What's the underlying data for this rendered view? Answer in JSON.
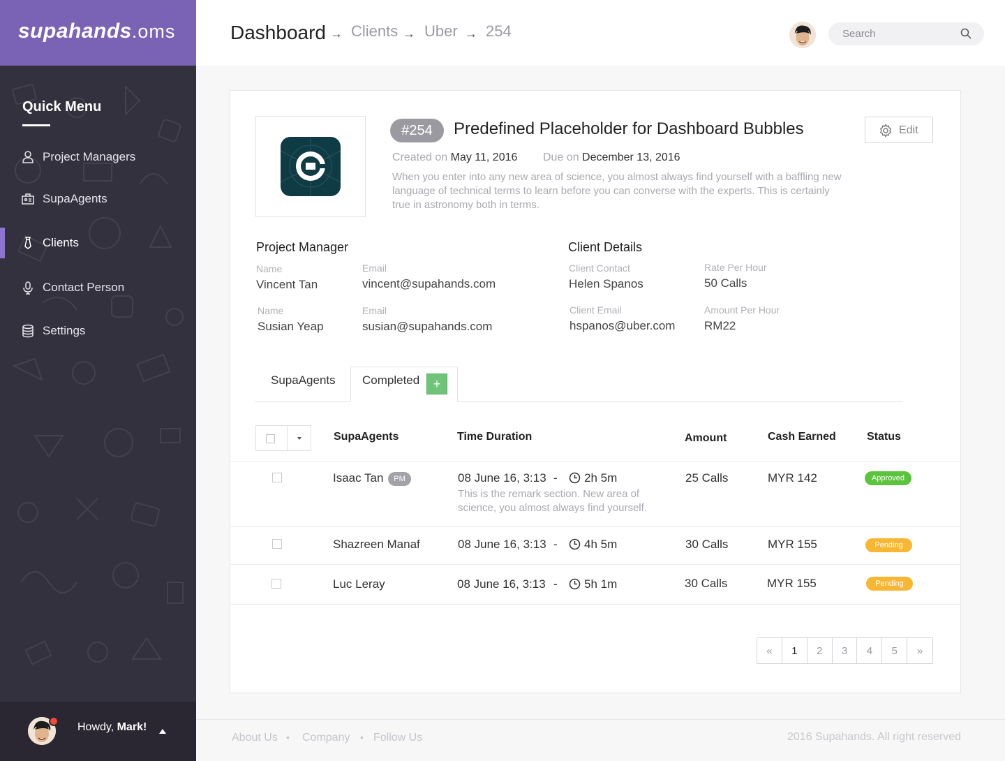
{
  "brand": {
    "name": "supahands",
    "suffix": ".oms"
  },
  "sidebar": {
    "title": "Quick Menu",
    "items": [
      {
        "label": "Project Managers",
        "icon": "user-icon"
      },
      {
        "label": "SupaAgents",
        "icon": "agents-icon"
      },
      {
        "label": "Clients",
        "icon": "tie-icon",
        "active": true
      },
      {
        "label": "Contact Person",
        "icon": "microphone-icon"
      },
      {
        "label": "Settings",
        "icon": "database-icon"
      }
    ],
    "user": {
      "greeting": "Howdy,",
      "name": "Mark!"
    }
  },
  "header": {
    "breadcrumb": [
      "Dashboard",
      "Clients",
      "Uber",
      "254"
    ],
    "separator": "→",
    "search_placeholder": "Search"
  },
  "project": {
    "id": "#254",
    "title": "Predefined Placeholder for Dashboard Bubbles",
    "edit_label": "Edit",
    "created_label": "Created on",
    "created": "May 11, 2016",
    "due_label": "Due on",
    "due": "December 13, 2016",
    "description": "When you enter into any new area of science, you almost always find yourself with a baffling new language of technical terms to learn before you can converse with the experts. This is certainly true in astronomy both in terms."
  },
  "project_manager": {
    "title": "Project Manager",
    "people": [
      {
        "name_label": "Name",
        "name": "Vincent Tan",
        "email_label": "Email",
        "email": "vincent@supahands.com"
      },
      {
        "name_label": "Name",
        "name": "Susian Yeap",
        "email_label": "Email",
        "email": "susian@supahands.com"
      }
    ]
  },
  "client_details": {
    "title": "Client Details",
    "contact_label": "Client Contact",
    "contact": "Helen Spanos",
    "rate_label": "Rate Per Hour",
    "rate": "50 Calls",
    "email_label": "Client Email",
    "email": "hspanos@uber.com",
    "amount_label": "Amount Per Hour",
    "amount": "RM22"
  },
  "tabs": [
    {
      "label": "SupaAgents"
    },
    {
      "label": "Completed",
      "active": true
    }
  ],
  "table": {
    "headers": [
      "SupaAgents",
      "Time Duration",
      "Amount",
      "Cash Earned",
      "Status"
    ],
    "rows": [
      {
        "agent": "Isaac Tan",
        "badge": "PM",
        "date": "08 June 16, 3:13",
        "dash": "-",
        "duration": "2h 5m",
        "remark": "This is the remark section. New area of science, you almost always find yourself.",
        "amount": "25 Calls",
        "cash": "MYR 142",
        "status": "Approved",
        "status_color": "#5cc33f"
      },
      {
        "agent": "Shazreen Manaf",
        "date": "08 June 16, 3:13",
        "dash": "-",
        "duration": "4h 5m",
        "amount": "30 Calls",
        "cash": "MYR 155",
        "status": "Pending",
        "status_color": "#f7b733"
      },
      {
        "agent": "Luc Leray",
        "date": "08 June 16, 3:13",
        "dash": "-",
        "duration": "5h 1m",
        "amount": "30 Calls",
        "cash": "MYR 155",
        "status": "Pending",
        "status_color": "#f7b733"
      }
    ]
  },
  "pagination": {
    "prev": "«",
    "pages": [
      "1",
      "2",
      "3",
      "4",
      "5"
    ],
    "next": "»",
    "current": "1"
  },
  "footer": {
    "links": [
      "About Us",
      "Company",
      "Follow Us"
    ],
    "separator": "•",
    "copyright": "2016 Supahands. All right reserved"
  },
  "colors": {
    "brand": "#7a62b5",
    "sidebar": "#34313f",
    "approved": "#5cc33f",
    "pending": "#f7b733",
    "add": "#6fc47a"
  }
}
